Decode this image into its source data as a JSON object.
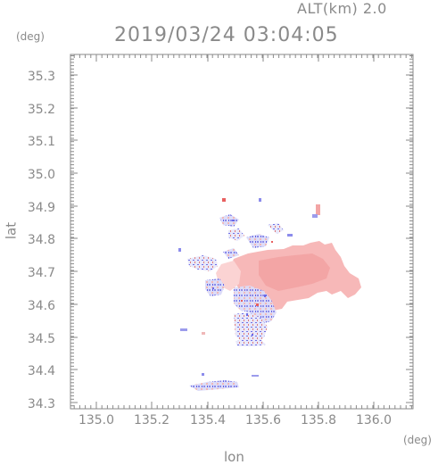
{
  "header": {
    "altitude_label": "ALT(km) 2.0",
    "timestamp": "2019/03/24 03:04:05"
  },
  "axes": {
    "lat_unit": "(deg)",
    "lon_unit": "(deg)",
    "xlabel": "lon",
    "ylabel": "lat",
    "x_ticks": [
      "135.0",
      "135.2",
      "135.4",
      "135.6",
      "135.8",
      "136.0"
    ],
    "y_ticks": [
      "34.3",
      "34.4",
      "34.5",
      "34.6",
      "34.7",
      "34.8",
      "34.9",
      "35.0",
      "35.1",
      "35.2",
      "35.3"
    ],
    "xlim": [
      134.9,
      136.13
    ],
    "ylim": [
      34.28,
      35.35
    ]
  },
  "colors": {
    "positive": "#f6b3b3",
    "negative": "#c8c8f6",
    "strong_positive": "#e86060",
    "strong_negative": "#6a6ae8",
    "axis": "#8a8a8a"
  }
}
